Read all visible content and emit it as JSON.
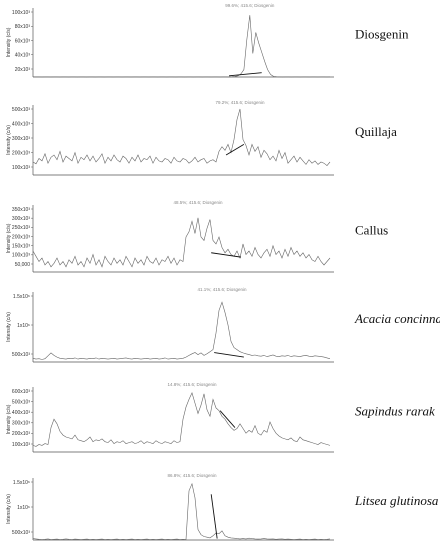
{
  "chart_data": [
    {
      "type": "line",
      "sample_label": "Diosgenin",
      "label_italic": false,
      "ylabel": "Intensity (c/s)",
      "peak_annotation": "99.6%; 415.6; Diosgenin",
      "yticks": [
        "20x10³",
        "40x10³",
        "60x10³",
        "80x10³",
        "100x10³"
      ],
      "ylim": [
        0,
        105
      ],
      "y": [
        0.4,
        0.3,
        0.3,
        0.2,
        0.3,
        0.3,
        0.2,
        0.3,
        0.3,
        0.2,
        0.3,
        0.3,
        0.2,
        0.3,
        0.3,
        0.2,
        0.3,
        0.3,
        0.2,
        0.3,
        0.3,
        0.2,
        0.3,
        0.3,
        0.2,
        0.3,
        0.3,
        0.2,
        0.3,
        0.3,
        0.2,
        0.3,
        0.3,
        0.2,
        0.3,
        0.3,
        0.2,
        0.3,
        0.3,
        0.2,
        0.3,
        0.3,
        0.2,
        0.3,
        0.3,
        0.2,
        0.3,
        0.3,
        0.2,
        0.3,
        0.3,
        0.2,
        0.3,
        0.3,
        0.2,
        0.3,
        0.3,
        0.2,
        0.3,
        0.3,
        0.2,
        0.3,
        0.3,
        0.2,
        0.3,
        0.3,
        0.2,
        0.5,
        1,
        2,
        5,
        12,
        60,
        100,
        38,
        72,
        55,
        40,
        25,
        12,
        4,
        1,
        0.5,
        0.3,
        0.2,
        0.3,
        0.3,
        0.2,
        0.3,
        0.3,
        0.2,
        0.3,
        0.3,
        0.2,
        0.3,
        0.3,
        0.2,
        0.3,
        0.3,
        0.2,
        0.3
      ],
      "marker": [
        [
          0.66,
          2
        ],
        [
          0.77,
          7
        ]
      ]
    },
    {
      "type": "line",
      "sample_label": "Quillaja",
      "label_italic": false,
      "ylabel": "Intensity (c/s)",
      "peak_annotation": "79.2%; 415.6; Diosgenin",
      "yticks": [
        "100x10³",
        "200x10³",
        "300x10³",
        "400x10³",
        "500x10³"
      ],
      "ylim": [
        0,
        560
      ],
      "y": [
        110,
        95,
        140,
        120,
        180,
        100,
        150,
        170,
        130,
        200,
        110,
        160,
        140,
        120,
        190,
        100,
        150,
        130,
        170,
        120,
        160,
        110,
        140,
        180,
        100,
        150,
        120,
        170,
        130,
        110,
        160,
        140,
        100,
        150,
        120,
        170,
        110,
        140,
        130,
        160,
        100,
        150,
        120,
        110,
        140,
        130,
        100,
        150,
        120,
        110,
        140,
        130,
        100,
        120,
        150,
        110,
        130,
        140,
        100,
        120,
        130,
        110,
        200,
        240,
        210,
        260,
        190,
        300,
        470,
        560,
        300,
        250,
        170,
        260,
        200,
        240,
        150,
        210,
        180,
        130,
        160,
        120,
        210,
        140,
        190,
        100,
        130,
        160,
        110,
        150,
        120,
        90,
        130,
        100,
        120,
        90,
        110,
        100,
        80,
        110
      ],
      "marker": [
        [
          0.65,
          170
        ],
        [
          0.71,
          260
        ]
      ]
    },
    {
      "type": "line",
      "sample_label": "Callus",
      "label_italic": false,
      "ylabel": "Intensity (c/s)",
      "peak_annotation": "48.5%; 415.6; Diosgenin",
      "yticks": [
        "50,000",
        "100x10³",
        "150x10³",
        "200x10³",
        "250x10³",
        "300x10³",
        "350x10³"
      ],
      "ylim": [
        0,
        360
      ],
      "y": [
        120,
        90,
        60,
        80,
        40,
        60,
        30,
        50,
        80,
        40,
        60,
        30,
        70,
        50,
        90,
        40,
        60,
        30,
        80,
        50,
        100,
        40,
        70,
        30,
        90,
        60,
        40,
        80,
        50,
        70,
        40,
        90,
        60,
        30,
        80,
        50,
        70,
        40,
        90,
        60,
        50,
        80,
        40,
        70,
        60,
        90,
        50,
        80,
        40,
        70,
        60,
        200,
        230,
        290,
        220,
        310,
        200,
        180,
        250,
        300,
        180,
        160,
        200,
        140,
        110,
        130,
        100,
        90,
        120,
        80,
        160,
        100,
        120,
        90,
        140,
        100,
        80,
        110,
        130,
        90,
        150,
        100,
        120,
        80,
        130,
        90,
        140,
        100,
        120,
        90,
        110,
        80,
        100,
        70,
        60,
        90,
        60,
        40,
        60,
        80
      ],
      "marker": [
        [
          0.6,
          110
        ],
        [
          0.7,
          85
        ]
      ]
    },
    {
      "type": "line",
      "sample_label": "Acacia concinna",
      "label_italic": true,
      "ylabel": "Intensity (c/s)",
      "peak_annotation": "41.1%; 415.6; Diosgenin",
      "yticks": [
        "500x10³",
        "1x10⁶",
        "1.5x10⁶"
      ],
      "ylim": [
        0,
        1600
      ],
      "y": [
        90,
        70,
        80,
        60,
        80,
        150,
        220,
        160,
        120,
        90,
        80,
        70,
        90,
        80,
        100,
        70,
        90,
        80,
        70,
        90,
        80,
        100,
        70,
        90,
        80,
        70,
        80,
        90,
        70,
        80,
        90,
        100,
        80,
        70,
        90,
        80,
        70,
        80,
        90,
        70,
        80,
        90,
        70,
        80,
        100,
        70,
        80,
        90,
        70,
        80,
        90,
        120,
        160,
        200,
        230,
        180,
        220,
        160,
        200,
        250,
        300,
        700,
        1250,
        1450,
        1200,
        900,
        500,
        350,
        300,
        250,
        220,
        200,
        180,
        160,
        170,
        150,
        140,
        160,
        130,
        150,
        170,
        140,
        130,
        150,
        140,
        160,
        130,
        150,
        140,
        130,
        150,
        160,
        140,
        130,
        150,
        140,
        130,
        120,
        100,
        80
      ],
      "marker": [
        [
          0.61,
          230
        ],
        [
          0.71,
          120
        ]
      ]
    },
    {
      "type": "line",
      "sample_label": "Sapindus rarak",
      "label_italic": true,
      "ylabel": "Intensity (c/s)",
      "peak_annotation": "14.8%; 415.6; Diosgenin",
      "yticks": [
        "100x10³",
        "200x10³",
        "300x10³",
        "400x10³",
        "500x10³",
        "600x10³"
      ],
      "ylim": [
        0,
        650
      ],
      "y": [
        70,
        60,
        80,
        70,
        90,
        80,
        260,
        350,
        300,
        220,
        180,
        160,
        150,
        140,
        180,
        130,
        120,
        110,
        130,
        160,
        110,
        130,
        120,
        140,
        110,
        100,
        130,
        90,
        110,
        100,
        120,
        90,
        100,
        110,
        90,
        100,
        120,
        90,
        110,
        100,
        90,
        120,
        100,
        90,
        110,
        100,
        90,
        120,
        100,
        110,
        350,
        480,
        560,
        630,
        520,
        410,
        500,
        620,
        450,
        380,
        560,
        470,
        440,
        380,
        350,
        300,
        260,
        230,
        250,
        300,
        250,
        200,
        230,
        210,
        280,
        200,
        180,
        230,
        210,
        320,
        250,
        200,
        170,
        150,
        140,
        130,
        150,
        120,
        110,
        160,
        130,
        120,
        110,
        100,
        90,
        80,
        100,
        90,
        80,
        70
      ],
      "marker": [
        [
          0.63,
          440
        ],
        [
          0.68,
          260
        ]
      ]
    },
    {
      "type": "line",
      "sample_label": "Litsea glutinosa",
      "label_italic": true,
      "ylabel": "Intensity (c/s)",
      "peak_annotation": "86.8%; 415.6; Diosgenin",
      "yticks": [
        "500x10³",
        "1x10⁶",
        "1.5x10⁶"
      ],
      "ylim": [
        0,
        1650
      ],
      "y": [
        40,
        30,
        20,
        15,
        20,
        30,
        15,
        20,
        25,
        15,
        20,
        30,
        20,
        15,
        25,
        20,
        15,
        20,
        25,
        15,
        20,
        15,
        20,
        25,
        15,
        20,
        15,
        20,
        25,
        15,
        20,
        15,
        20,
        25,
        15,
        20,
        15,
        20,
        25,
        15,
        20,
        15,
        20,
        25,
        15,
        20,
        15,
        20,
        25,
        15,
        20,
        15,
        1400,
        1600,
        1200,
        300,
        150,
        100,
        80,
        60,
        120,
        200,
        180,
        260,
        120,
        80,
        60,
        50,
        40,
        30,
        40,
        30,
        50,
        40,
        30,
        25,
        30,
        40,
        30,
        25,
        30,
        20,
        25,
        30,
        20,
        25,
        20,
        15,
        20,
        25,
        15,
        20,
        15,
        20,
        25,
        15,
        20,
        15,
        20,
        30
      ],
      "marker": [
        [
          0.6,
          1300
        ],
        [
          0.62,
          40
        ]
      ]
    }
  ]
}
